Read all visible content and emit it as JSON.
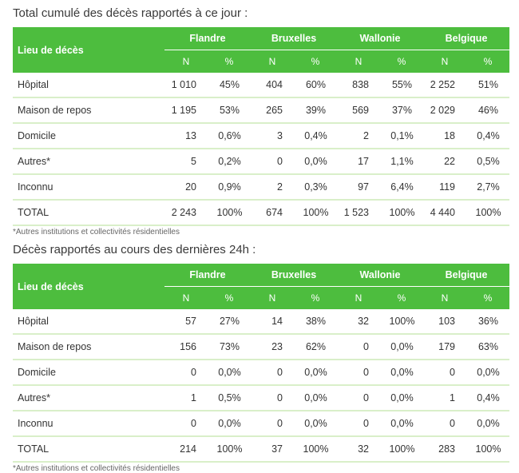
{
  "table1": {
    "heading": "Total cumulé des décès rapportés à ce jour :",
    "col_lieu": "Lieu de décès",
    "regions": [
      "Flandre",
      "Bruxelles",
      "Wallonie",
      "Belgique"
    ],
    "sub_n": "N",
    "sub_pct": "%",
    "rows": [
      {
        "label": "Hôpital",
        "cells": [
          "1 010",
          "45%",
          "404",
          "60%",
          "838",
          "55%",
          "2 252",
          "51%"
        ]
      },
      {
        "label": "Maison de repos",
        "cells": [
          "1 195",
          "53%",
          "265",
          "39%",
          "569",
          "37%",
          "2 029",
          "46%"
        ]
      },
      {
        "label": "Domicile",
        "cells": [
          "13",
          "0,6%",
          "3",
          "0,4%",
          "2",
          "0,1%",
          "18",
          "0,4%"
        ]
      },
      {
        "label": "Autres*",
        "cells": [
          "5",
          "0,2%",
          "0",
          "0,0%",
          "17",
          "1,1%",
          "22",
          "0,5%"
        ]
      },
      {
        "label": "Inconnu",
        "cells": [
          "20",
          "0,9%",
          "2",
          "0,3%",
          "97",
          "6,4%",
          "119",
          "2,7%"
        ]
      },
      {
        "label": "TOTAL",
        "cells": [
          "2 243",
          "100%",
          "674",
          "100%",
          "1 523",
          "100%",
          "4 440",
          "100%"
        ]
      }
    ],
    "note": "*Autres institutions et collectivités résidentielles"
  },
  "table2": {
    "heading": "Décès rapportés au cours des dernières 24h :",
    "col_lieu": "Lieu de décès",
    "regions": [
      "Flandre",
      "Bruxelles",
      "Wallonie",
      "Belgique"
    ],
    "sub_n": "N",
    "sub_pct": "%",
    "rows": [
      {
        "label": "Hôpital",
        "cells": [
          "57",
          "27%",
          "14",
          "38%",
          "32",
          "100%",
          "103",
          "36%"
        ]
      },
      {
        "label": "Maison de repos",
        "cells": [
          "156",
          "73%",
          "23",
          "62%",
          "0",
          "0,0%",
          "179",
          "63%"
        ]
      },
      {
        "label": "Domicile",
        "cells": [
          "0",
          "0,0%",
          "0",
          "0,0%",
          "0",
          "0,0%",
          "0",
          "0,0%"
        ]
      },
      {
        "label": "Autres*",
        "cells": [
          "1",
          "0,5%",
          "0",
          "0,0%",
          "0",
          "0,0%",
          "1",
          "0,4%"
        ]
      },
      {
        "label": "Inconnu",
        "cells": [
          "0",
          "0,0%",
          "0",
          "0,0%",
          "0",
          "0,0%",
          "0",
          "0,0%"
        ]
      },
      {
        "label": "TOTAL",
        "cells": [
          "214",
          "100%",
          "37",
          "100%",
          "32",
          "100%",
          "283",
          "100%"
        ]
      }
    ],
    "note": "*Autres institutions et collectivités résidentielles"
  },
  "colors": {
    "header_green": "#4dbd3e",
    "row_border": "#d9efc9"
  }
}
